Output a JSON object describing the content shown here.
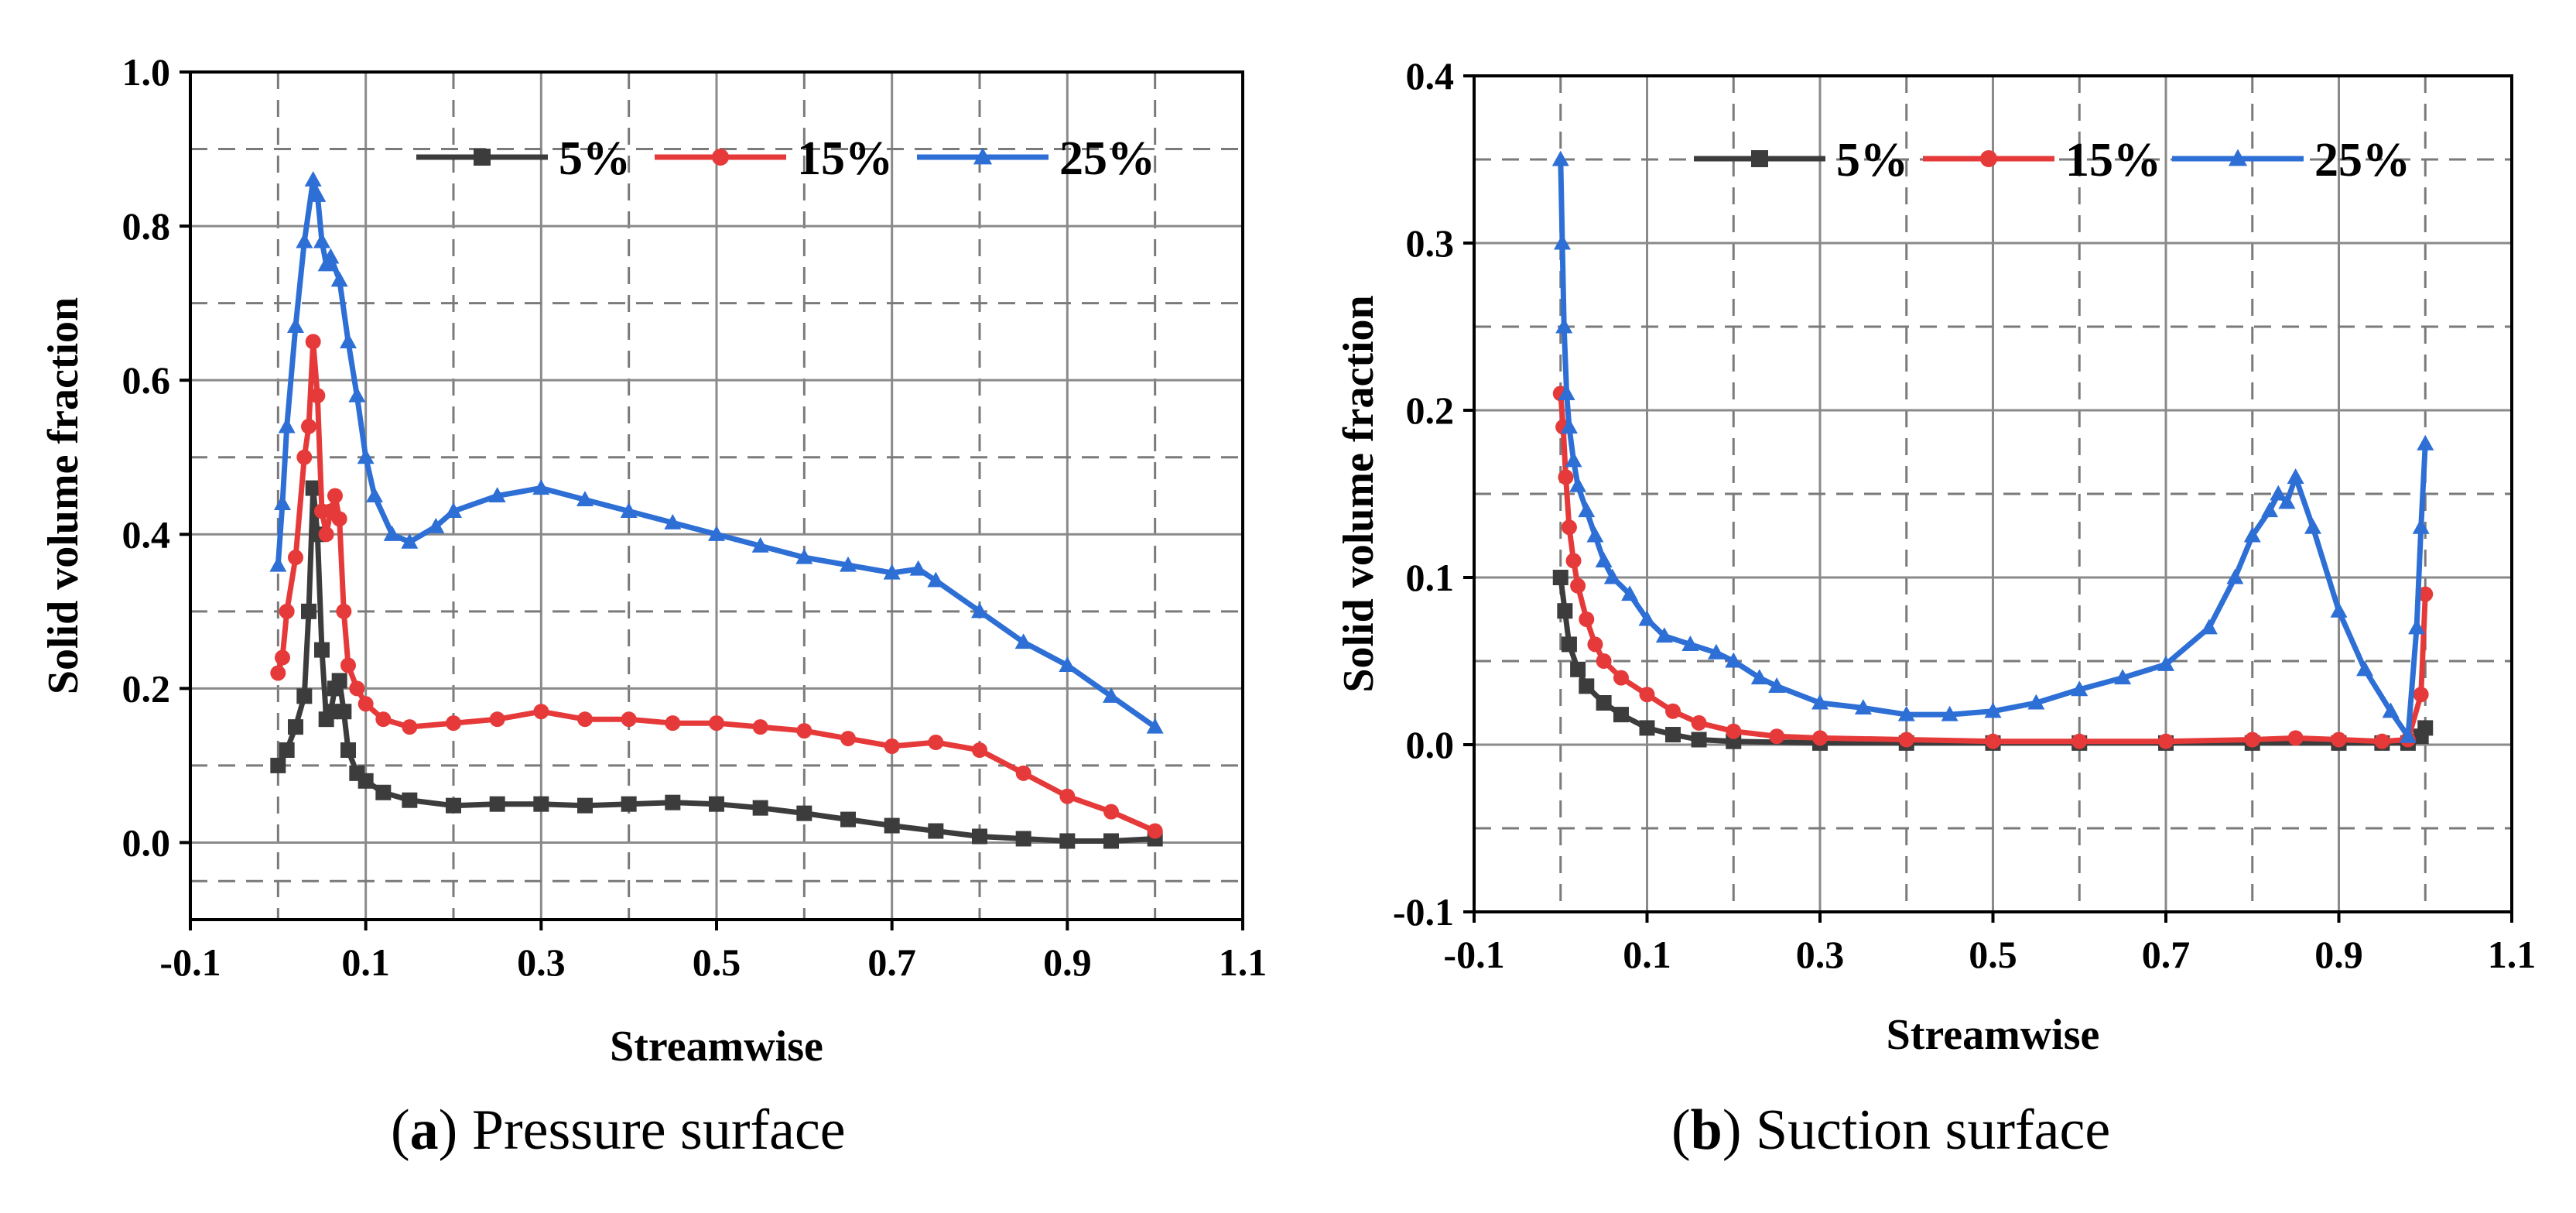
{
  "chart_data": [
    {
      "type": "line",
      "caption_letter": "a",
      "caption_text": "Pressure surface",
      "xlabel": "Streamwise",
      "ylabel": "Solid volume fraction",
      "xlim": [
        -0.1,
        1.1
      ],
      "ylim": [
        -0.1,
        1.0
      ],
      "xticks": [
        -0.1,
        0.1,
        0.3,
        0.5,
        0.7,
        0.9,
        1.1
      ],
      "xtick_labels": [
        "-0.1",
        "0.1",
        "0.3",
        "0.5",
        "0.7",
        "0.9",
        "1.1"
      ],
      "yticks": [
        0.0,
        0.2,
        0.4,
        0.6,
        0.8,
        1.0
      ],
      "ytick_labels": [
        "0.0",
        "0.2",
        "0.4",
        "0.6",
        "0.8",
        "1.0"
      ],
      "grid": true,
      "legend_position": "top",
      "series": [
        {
          "name": "5%",
          "color": "#3c3c3c",
          "marker": "square",
          "x": [
            0.0,
            0.01,
            0.02,
            0.03,
            0.035,
            0.04,
            0.045,
            0.05,
            0.055,
            0.06,
            0.065,
            0.07,
            0.075,
            0.08,
            0.09,
            0.1,
            0.12,
            0.15,
            0.2,
            0.25,
            0.3,
            0.35,
            0.4,
            0.45,
            0.5,
            0.55,
            0.6,
            0.65,
            0.7,
            0.75,
            0.8,
            0.85,
            0.9,
            0.95,
            1.0
          ],
          "y": [
            0.1,
            0.12,
            0.15,
            0.19,
            0.3,
            0.46,
            0.4,
            0.25,
            0.16,
            0.17,
            0.2,
            0.21,
            0.17,
            0.12,
            0.09,
            0.08,
            0.065,
            0.055,
            0.048,
            0.05,
            0.05,
            0.048,
            0.05,
            0.052,
            0.05,
            0.045,
            0.038,
            0.03,
            0.022,
            0.015,
            0.008,
            0.005,
            0.002,
            0.002,
            0.005
          ]
        },
        {
          "name": "15%",
          "color": "#e63a3a",
          "marker": "circle",
          "x": [
            0.0,
            0.005,
            0.01,
            0.02,
            0.03,
            0.035,
            0.04,
            0.045,
            0.05,
            0.055,
            0.06,
            0.065,
            0.07,
            0.075,
            0.08,
            0.09,
            0.1,
            0.12,
            0.15,
            0.2,
            0.25,
            0.3,
            0.35,
            0.4,
            0.45,
            0.5,
            0.55,
            0.6,
            0.65,
            0.7,
            0.75,
            0.8,
            0.85,
            0.9,
            0.95,
            1.0
          ],
          "y": [
            0.22,
            0.24,
            0.3,
            0.37,
            0.5,
            0.54,
            0.65,
            0.58,
            0.43,
            0.4,
            0.43,
            0.45,
            0.42,
            0.3,
            0.23,
            0.2,
            0.18,
            0.16,
            0.15,
            0.155,
            0.16,
            0.17,
            0.16,
            0.16,
            0.155,
            0.155,
            0.15,
            0.145,
            0.135,
            0.125,
            0.13,
            0.12,
            0.09,
            0.06,
            0.04,
            0.015
          ]
        },
        {
          "name": "25%",
          "color": "#2e6fd6",
          "marker": "triangle",
          "x": [
            0.0,
            0.005,
            0.01,
            0.02,
            0.03,
            0.04,
            0.045,
            0.05,
            0.055,
            0.06,
            0.07,
            0.08,
            0.09,
            0.1,
            0.11,
            0.13,
            0.15,
            0.18,
            0.2,
            0.25,
            0.3,
            0.35,
            0.4,
            0.45,
            0.5,
            0.55,
            0.6,
            0.65,
            0.7,
            0.73,
            0.75,
            0.8,
            0.85,
            0.9,
            0.95,
            1.0
          ],
          "y": [
            0.36,
            0.44,
            0.54,
            0.67,
            0.78,
            0.86,
            0.84,
            0.78,
            0.75,
            0.76,
            0.73,
            0.65,
            0.58,
            0.5,
            0.45,
            0.4,
            0.39,
            0.41,
            0.43,
            0.45,
            0.46,
            0.445,
            0.43,
            0.415,
            0.4,
            0.385,
            0.37,
            0.36,
            0.35,
            0.355,
            0.34,
            0.3,
            0.26,
            0.23,
            0.19,
            0.15
          ]
        }
      ]
    },
    {
      "type": "line",
      "caption_letter": "b",
      "caption_text": "Suction surface",
      "xlabel": "Streamwise",
      "ylabel": "Solid volume fraction",
      "xlim": [
        -0.1,
        1.1
      ],
      "ylim": [
        -0.1,
        0.4
      ],
      "xticks": [
        -0.1,
        0.1,
        0.3,
        0.5,
        0.7,
        0.9,
        1.1
      ],
      "xtick_labels": [
        "-0.1",
        "0.1",
        "0.3",
        "0.5",
        "0.7",
        "0.9",
        "1.1"
      ],
      "yticks": [
        -0.1,
        0.0,
        0.1,
        0.2,
        0.3,
        0.4
      ],
      "ytick_labels": [
        "-0.1",
        "0.0",
        "0.1",
        "0.2",
        "0.3",
        "0.4"
      ],
      "grid": true,
      "legend_position": "top",
      "series": [
        {
          "name": "5%",
          "color": "#3c3c3c",
          "marker": "square",
          "x": [
            0.0,
            0.005,
            0.01,
            0.02,
            0.03,
            0.05,
            0.07,
            0.1,
            0.13,
            0.16,
            0.2,
            0.3,
            0.4,
            0.5,
            0.6,
            0.7,
            0.8,
            0.9,
            0.95,
            0.98,
            0.995,
            1.0
          ],
          "y": [
            0.1,
            0.08,
            0.06,
            0.045,
            0.035,
            0.025,
            0.018,
            0.01,
            0.006,
            0.003,
            0.002,
            0.001,
            0.001,
            0.001,
            0.001,
            0.001,
            0.001,
            0.001,
            0.001,
            0.001,
            0.005,
            0.01
          ]
        },
        {
          "name": "15%",
          "color": "#e63a3a",
          "marker": "circle",
          "x": [
            0.0,
            0.003,
            0.006,
            0.01,
            0.015,
            0.02,
            0.03,
            0.04,
            0.05,
            0.07,
            0.1,
            0.13,
            0.16,
            0.2,
            0.25,
            0.3,
            0.4,
            0.5,
            0.6,
            0.7,
            0.8,
            0.85,
            0.9,
            0.95,
            0.98,
            0.995,
            1.0
          ],
          "y": [
            0.21,
            0.19,
            0.16,
            0.13,
            0.11,
            0.095,
            0.075,
            0.06,
            0.05,
            0.04,
            0.03,
            0.02,
            0.013,
            0.008,
            0.005,
            0.004,
            0.003,
            0.002,
            0.002,
            0.002,
            0.003,
            0.004,
            0.003,
            0.002,
            0.003,
            0.03,
            0.09
          ]
        },
        {
          "name": "25%",
          "color": "#2e6fd6",
          "marker": "triangle",
          "x": [
            0.0,
            0.002,
            0.004,
            0.007,
            0.01,
            0.015,
            0.02,
            0.03,
            0.04,
            0.05,
            0.06,
            0.08,
            0.1,
            0.12,
            0.15,
            0.18,
            0.2,
            0.23,
            0.25,
            0.3,
            0.35,
            0.4,
            0.45,
            0.5,
            0.55,
            0.6,
            0.65,
            0.7,
            0.75,
            0.78,
            0.8,
            0.82,
            0.83,
            0.84,
            0.85,
            0.87,
            0.9,
            0.93,
            0.96,
            0.98,
            0.99,
            0.995,
            1.0
          ],
          "y": [
            0.35,
            0.3,
            0.25,
            0.21,
            0.19,
            0.17,
            0.155,
            0.14,
            0.125,
            0.11,
            0.1,
            0.09,
            0.075,
            0.065,
            0.06,
            0.055,
            0.05,
            0.04,
            0.035,
            0.025,
            0.022,
            0.018,
            0.018,
            0.02,
            0.025,
            0.033,
            0.04,
            0.048,
            0.07,
            0.1,
            0.125,
            0.14,
            0.15,
            0.145,
            0.16,
            0.13,
            0.08,
            0.045,
            0.02,
            0.005,
            0.07,
            0.13,
            0.18
          ]
        }
      ]
    }
  ]
}
